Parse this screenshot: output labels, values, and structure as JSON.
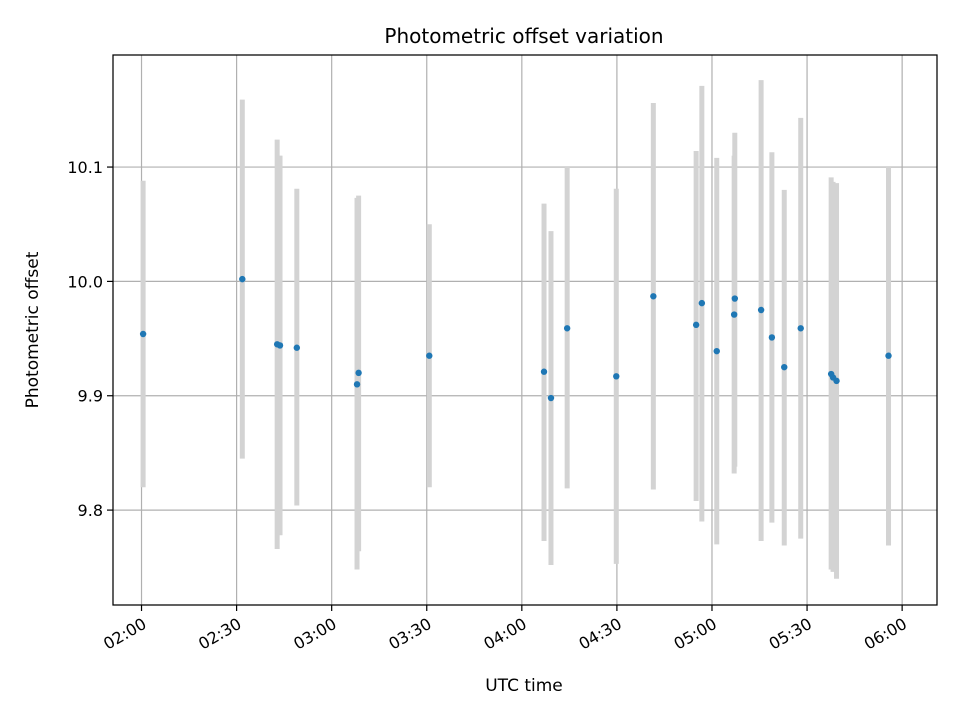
{
  "chart_data": {
    "type": "scatter",
    "title": "Photometric offset variation",
    "xlabel": "UTC time",
    "ylabel": "Photometric offset",
    "grid": true,
    "x_unit": "minutes since 00:00 UTC",
    "xlim": [
      111,
      371
    ],
    "ylim": [
      9.717,
      10.198
    ],
    "x_ticks": [
      {
        "value": 120,
        "label": "02:00"
      },
      {
        "value": 150,
        "label": "02:30"
      },
      {
        "value": 180,
        "label": "03:00"
      },
      {
        "value": 210,
        "label": "03:30"
      },
      {
        "value": 240,
        "label": "04:00"
      },
      {
        "value": 270,
        "label": "04:30"
      },
      {
        "value": 300,
        "label": "05:00"
      },
      {
        "value": 330,
        "label": "05:30"
      },
      {
        "value": 360,
        "label": "06:00"
      }
    ],
    "y_ticks": [
      {
        "value": 9.8,
        "label": "9.8"
      },
      {
        "value": 9.9,
        "label": "9.9"
      },
      {
        "value": 10.0,
        "label": "10.0"
      },
      {
        "value": 10.1,
        "label": "10.1"
      }
    ],
    "colors": {
      "point": "#1f77b4",
      "errorbar": "#d3d3d3",
      "grid": "#b0b0b0",
      "axis": "#000000"
    },
    "series": [
      {
        "name": "offset",
        "points": [
          {
            "x": 120.5,
            "y": 9.954,
            "lo": 9.82,
            "hi": 10.088
          },
          {
            "x": 151.8,
            "y": 10.002,
            "lo": 9.845,
            "hi": 10.159
          },
          {
            "x": 162.8,
            "y": 9.945,
            "lo": 9.766,
            "hi": 10.124
          },
          {
            "x": 163.7,
            "y": 9.944,
            "lo": 9.778,
            "hi": 10.11
          },
          {
            "x": 169.0,
            "y": 9.942,
            "lo": 9.804,
            "hi": 10.081
          },
          {
            "x": 188.0,
            "y": 9.91,
            "lo": 9.748,
            "hi": 10.073
          },
          {
            "x": 188.5,
            "y": 9.92,
            "lo": 9.764,
            "hi": 10.075
          },
          {
            "x": 210.8,
            "y": 9.935,
            "lo": 9.82,
            "hi": 10.05
          },
          {
            "x": 247.0,
            "y": 9.921,
            "lo": 9.773,
            "hi": 10.068
          },
          {
            "x": 249.2,
            "y": 9.898,
            "lo": 9.752,
            "hi": 10.044
          },
          {
            "x": 254.3,
            "y": 9.959,
            "lo": 9.819,
            "hi": 10.1
          },
          {
            "x": 269.8,
            "y": 9.917,
            "lo": 9.753,
            "hi": 10.081
          },
          {
            "x": 281.5,
            "y": 9.987,
            "lo": 9.818,
            "hi": 10.156
          },
          {
            "x": 295.0,
            "y": 9.962,
            "lo": 9.808,
            "hi": 10.114
          },
          {
            "x": 296.8,
            "y": 9.981,
            "lo": 9.79,
            "hi": 10.171
          },
          {
            "x": 301.5,
            "y": 9.939,
            "lo": 9.77,
            "hi": 10.108
          },
          {
            "x": 307.0,
            "y": 9.971,
            "lo": 9.832,
            "hi": 10.11
          },
          {
            "x": 307.2,
            "y": 9.985,
            "lo": 9.838,
            "hi": 10.13
          },
          {
            "x": 315.5,
            "y": 9.975,
            "lo": 9.773,
            "hi": 10.176
          },
          {
            "x": 318.9,
            "y": 9.951,
            "lo": 9.789,
            "hi": 10.113
          },
          {
            "x": 322.8,
            "y": 9.925,
            "lo": 9.769,
            "hi": 10.08
          },
          {
            "x": 328.0,
            "y": 9.959,
            "lo": 9.775,
            "hi": 10.143
          },
          {
            "x": 337.6,
            "y": 9.919,
            "lo": 9.748,
            "hi": 10.091
          },
          {
            "x": 338.2,
            "y": 9.916,
            "lo": 9.746,
            "hi": 10.087
          },
          {
            "x": 339.3,
            "y": 9.913,
            "lo": 9.74,
            "hi": 10.086
          },
          {
            "x": 355.7,
            "y": 9.935,
            "lo": 9.769,
            "hi": 10.1
          }
        ]
      }
    ]
  }
}
